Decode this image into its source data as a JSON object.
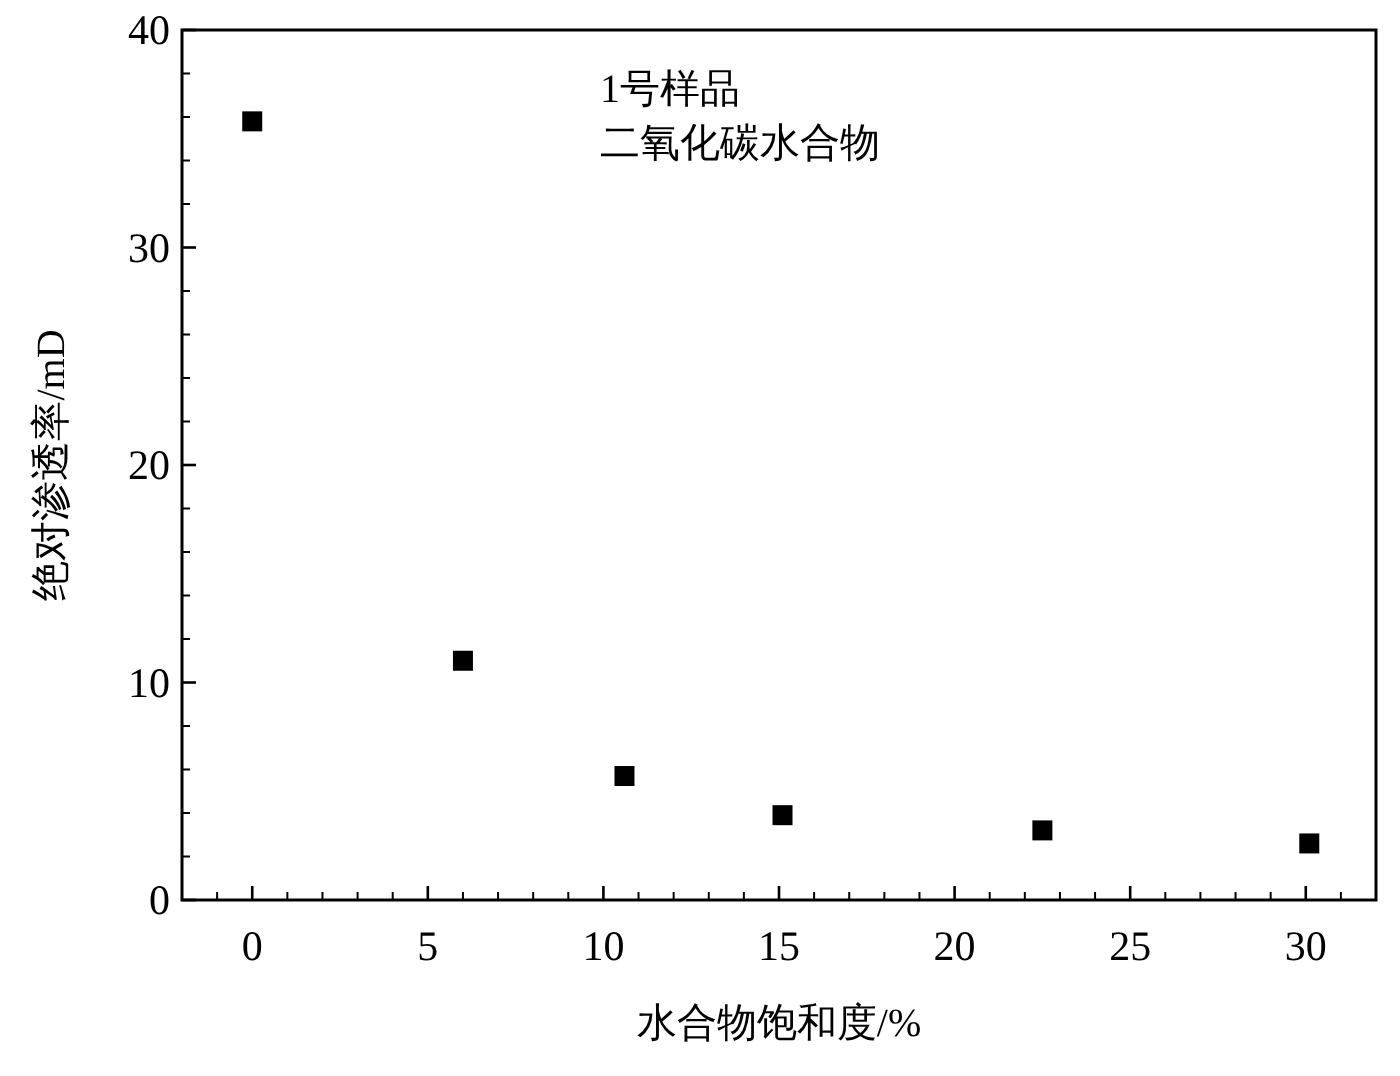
{
  "chart_data": {
    "type": "scatter",
    "xlabel": "水合物饱和度/%",
    "ylabel": "绝对渗透率/mD",
    "annotations": [
      "1号样品",
      "二氧化碳水合物"
    ],
    "x": [
      0,
      6,
      10.6,
      15.1,
      22.5,
      30.1
    ],
    "series": [
      {
        "color": "#000000",
        "values": [
          35.8,
          11.0,
          5.7,
          3.9,
          3.2,
          2.6
        ]
      }
    ],
    "xlim": [
      -2,
      32
    ],
    "xticks": [
      0,
      5,
      10,
      15,
      20,
      25,
      30
    ],
    "ylim": [
      0,
      40
    ],
    "yticks": [
      0,
      10,
      20,
      30,
      40
    ],
    "marker": "square",
    "grid": false
  }
}
